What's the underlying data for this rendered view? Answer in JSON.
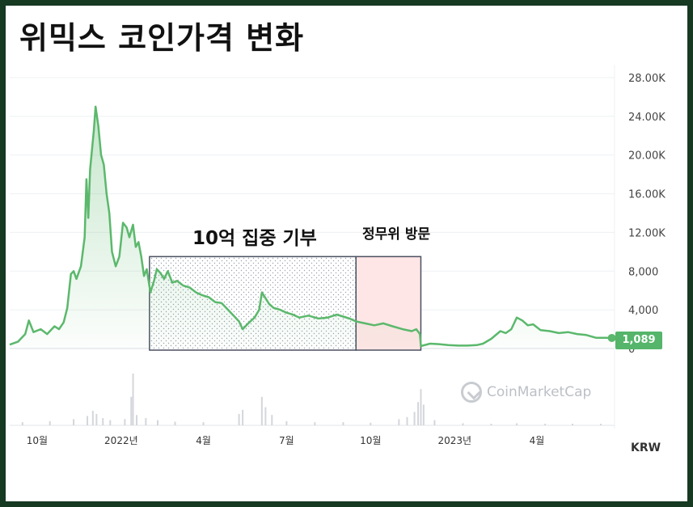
{
  "title": "위믹스 코인가격 변화",
  "watermark": "CoinMarketCap",
  "currency": "KRW",
  "current_price_label": "1,089",
  "colors": {
    "line": "#5bb86c",
    "frame": "#173a22",
    "highlight": "#ffe6e6",
    "badge": "#55b56a"
  },
  "annotations": [
    {
      "id": "donation",
      "label": "10억 집중 기부",
      "range": [
        "2022-02-01",
        "2022-09-15"
      ]
    },
    {
      "id": "visit",
      "label": "정무위 방문",
      "range": [
        "2022-09-15",
        "2022-11-25"
      ]
    }
  ],
  "chart_data": {
    "type": "area",
    "title": "",
    "xlabel": "",
    "ylabel": "",
    "ylim": [
      0,
      28000
    ],
    "y_ticks": [
      {
        "value": 0,
        "label": "0"
      },
      {
        "value": 4000,
        "label": "4,000"
      },
      {
        "value": 8000,
        "label": "8,000"
      },
      {
        "value": 12000,
        "label": "12.00K"
      },
      {
        "value": 16000,
        "label": "16.00K"
      },
      {
        "value": 20000,
        "label": "20.00K"
      },
      {
        "value": 24000,
        "label": "24.00K"
      },
      {
        "value": 28000,
        "label": "28.00K"
      }
    ],
    "xlim": [
      "2021-09-01",
      "2023-06-25"
    ],
    "x_ticks": [
      {
        "date": "2021-10-01",
        "label": "10월"
      },
      {
        "date": "2022-01-01",
        "label": "2022년"
      },
      {
        "date": "2022-04-01",
        "label": "4월"
      },
      {
        "date": "2022-07-01",
        "label": "7월"
      },
      {
        "date": "2022-10-01",
        "label": "10월"
      },
      {
        "date": "2023-01-01",
        "label": "2023년"
      },
      {
        "date": "2023-04-01",
        "label": "4월"
      }
    ],
    "series": [
      {
        "points": [
          [
            "2021-09-01",
            400
          ],
          [
            "2021-09-10",
            700
          ],
          [
            "2021-09-18",
            1500
          ],
          [
            "2021-09-22",
            2900
          ],
          [
            "2021-09-27",
            1700
          ],
          [
            "2021-10-05",
            2000
          ],
          [
            "2021-10-12",
            1500
          ],
          [
            "2021-10-20",
            2300
          ],
          [
            "2021-10-25",
            2000
          ],
          [
            "2021-10-30",
            2700
          ],
          [
            "2021-11-03",
            4200
          ],
          [
            "2021-11-07",
            7700
          ],
          [
            "2021-11-10",
            8000
          ],
          [
            "2021-11-13",
            7200
          ],
          [
            "2021-11-18",
            8500
          ],
          [
            "2021-11-22",
            11500
          ],
          [
            "2021-11-24",
            17500
          ],
          [
            "2021-11-26",
            13500
          ],
          [
            "2021-11-28",
            18500
          ],
          [
            "2021-11-30",
            20500
          ],
          [
            "2021-12-02",
            22500
          ],
          [
            "2021-12-04",
            25000
          ],
          [
            "2021-12-07",
            23000
          ],
          [
            "2021-12-10",
            20000
          ],
          [
            "2021-12-13",
            19000
          ],
          [
            "2021-12-16",
            16000
          ],
          [
            "2021-12-19",
            14000
          ],
          [
            "2021-12-22",
            10000
          ],
          [
            "2021-12-26",
            8500
          ],
          [
            "2021-12-30",
            9500
          ],
          [
            "2022-01-03",
            13000
          ],
          [
            "2022-01-07",
            12500
          ],
          [
            "2022-01-10",
            11500
          ],
          [
            "2022-01-14",
            12800
          ],
          [
            "2022-01-17",
            10500
          ],
          [
            "2022-01-20",
            11000
          ],
          [
            "2022-01-23",
            9500
          ],
          [
            "2022-01-26",
            7500
          ],
          [
            "2022-01-29",
            8200
          ],
          [
            "2022-02-02",
            5800
          ],
          [
            "2022-02-06",
            7000
          ],
          [
            "2022-02-09",
            8200
          ],
          [
            "2022-02-13",
            7800
          ],
          [
            "2022-02-17",
            7200
          ],
          [
            "2022-02-21",
            8000
          ],
          [
            "2022-02-26",
            6800
          ],
          [
            "2022-03-03",
            7000
          ],
          [
            "2022-03-10",
            6500
          ],
          [
            "2022-03-17",
            6300
          ],
          [
            "2022-03-24",
            5800
          ],
          [
            "2022-03-31",
            5500
          ],
          [
            "2022-04-07",
            5300
          ],
          [
            "2022-04-14",
            4800
          ],
          [
            "2022-04-21",
            4700
          ],
          [
            "2022-04-28",
            4000
          ],
          [
            "2022-05-05",
            3300
          ],
          [
            "2022-05-10",
            2800
          ],
          [
            "2022-05-14",
            2000
          ],
          [
            "2022-05-20",
            2600
          ],
          [
            "2022-05-27",
            3200
          ],
          [
            "2022-06-01",
            4000
          ],
          [
            "2022-06-04",
            5800
          ],
          [
            "2022-06-08",
            5200
          ],
          [
            "2022-06-12",
            4600
          ],
          [
            "2022-06-17",
            4200
          ],
          [
            "2022-06-24",
            4000
          ],
          [
            "2022-07-01",
            3700
          ],
          [
            "2022-07-08",
            3500
          ],
          [
            "2022-07-15",
            3200
          ],
          [
            "2022-07-25",
            3400
          ],
          [
            "2022-08-05",
            3100
          ],
          [
            "2022-08-15",
            3200
          ],
          [
            "2022-08-25",
            3500
          ],
          [
            "2022-09-01",
            3300
          ],
          [
            "2022-09-08",
            3100
          ],
          [
            "2022-09-15",
            2800
          ],
          [
            "2022-09-25",
            2600
          ],
          [
            "2022-10-05",
            2400
          ],
          [
            "2022-10-15",
            2600
          ],
          [
            "2022-10-25",
            2300
          ],
          [
            "2022-11-05",
            2000
          ],
          [
            "2022-11-15",
            1800
          ],
          [
            "2022-11-20",
            2000
          ],
          [
            "2022-11-24",
            1500
          ],
          [
            "2022-11-25",
            250
          ],
          [
            "2022-12-05",
            500
          ],
          [
            "2022-12-15",
            450
          ],
          [
            "2022-12-25",
            350
          ],
          [
            "2023-01-05",
            300
          ],
          [
            "2023-01-15",
            300
          ],
          [
            "2023-01-25",
            350
          ],
          [
            "2023-02-01",
            500
          ],
          [
            "2023-02-10",
            1000
          ],
          [
            "2023-02-20",
            1800
          ],
          [
            "2023-02-26",
            1600
          ],
          [
            "2023-03-04",
            2000
          ],
          [
            "2023-03-10",
            3200
          ],
          [
            "2023-03-16",
            2900
          ],
          [
            "2023-03-22",
            2400
          ],
          [
            "2023-03-28",
            2500
          ],
          [
            "2023-04-05",
            1900
          ],
          [
            "2023-04-15",
            1800
          ],
          [
            "2023-04-25",
            1600
          ],
          [
            "2023-05-05",
            1700
          ],
          [
            "2023-05-15",
            1500
          ],
          [
            "2023-05-25",
            1400
          ],
          [
            "2023-06-05",
            1100
          ],
          [
            "2023-06-15",
            1100
          ],
          [
            "2023-06-22",
            1089
          ]
        ]
      }
    ],
    "volume": {
      "max": 100,
      "points": [
        [
          "2021-09-15",
          6
        ],
        [
          "2021-10-15",
          8
        ],
        [
          "2021-11-10",
          12
        ],
        [
          "2021-11-25",
          18
        ],
        [
          "2021-12-01",
          28
        ],
        [
          "2021-12-05",
          22
        ],
        [
          "2021-12-12",
          14
        ],
        [
          "2021-12-20",
          10
        ],
        [
          "2022-01-05",
          12
        ],
        [
          "2022-01-12",
          55
        ],
        [
          "2022-01-14",
          100
        ],
        [
          "2022-01-18",
          20
        ],
        [
          "2022-01-28",
          14
        ],
        [
          "2022-02-10",
          10
        ],
        [
          "2022-03-01",
          7
        ],
        [
          "2022-04-01",
          6
        ],
        [
          "2022-05-10",
          22
        ],
        [
          "2022-05-14",
          30
        ],
        [
          "2022-06-04",
          55
        ],
        [
          "2022-06-08",
          35
        ],
        [
          "2022-06-15",
          20
        ],
        [
          "2022-07-01",
          8
        ],
        [
          "2022-08-01",
          6
        ],
        [
          "2022-09-01",
          6
        ],
        [
          "2022-10-01",
          5
        ],
        [
          "2022-11-01",
          12
        ],
        [
          "2022-11-10",
          16
        ],
        [
          "2022-11-18",
          26
        ],
        [
          "2022-11-22",
          45
        ],
        [
          "2022-11-25",
          70
        ],
        [
          "2022-11-28",
          40
        ],
        [
          "2022-12-10",
          10
        ],
        [
          "2023-01-10",
          4
        ],
        [
          "2023-02-10",
          3
        ],
        [
          "2023-03-10",
          4
        ],
        [
          "2023-04-10",
          3
        ],
        [
          "2023-05-10",
          3
        ],
        [
          "2023-06-10",
          3
        ]
      ]
    }
  }
}
